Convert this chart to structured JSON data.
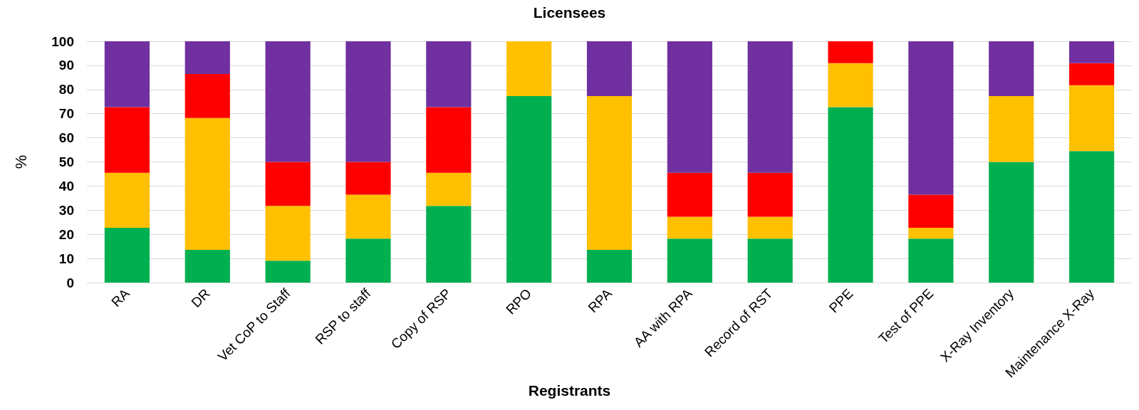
{
  "chart_data": {
    "type": "bar",
    "title": "Licensees",
    "ylabel": "%",
    "stacked": true,
    "categories": [
      "RA",
      "DR",
      "Vet CoP to Staff",
      "RSP to staff",
      "Copy of RSP",
      "RPO",
      "RPA",
      "AA with RPA",
      "Record of RST",
      "PPE",
      "Test of PPE",
      "X-Ray Inventory",
      "Maintenance X-Ray"
    ],
    "series": [
      {
        "color": "#00b050",
        "values": [
          22.7,
          13.6,
          9.1,
          18.2,
          31.8,
          77.3,
          13.6,
          18.2,
          18.2,
          72.7,
          18.2,
          50,
          54.5
        ]
      },
      {
        "color": "#ffc000",
        "values": [
          22.8,
          54.6,
          22.7,
          18.2,
          13.7,
          22.7,
          63.7,
          9.1,
          9.1,
          18.2,
          4.5,
          27.3,
          27.3
        ]
      },
      {
        "color": "#ff0000",
        "values": [
          27.2,
          18.2,
          18.2,
          13.6,
          27.2,
          0,
          0,
          18.2,
          18.2,
          9.1,
          13.7,
          0,
          9.1
        ]
      },
      {
        "color": "#7030a0",
        "values": [
          27.3,
          13.6,
          50,
          50,
          27.3,
          0,
          22.7,
          54.5,
          54.5,
          0,
          63.6,
          22.7,
          9.1
        ]
      }
    ],
    "ylim": [
      0,
      100
    ],
    "yticks": [
      0,
      10,
      20,
      30,
      40,
      50,
      60,
      70,
      80,
      90,
      100
    ],
    "grid": "y",
    "annotations": [
      "Registrants"
    ]
  }
}
